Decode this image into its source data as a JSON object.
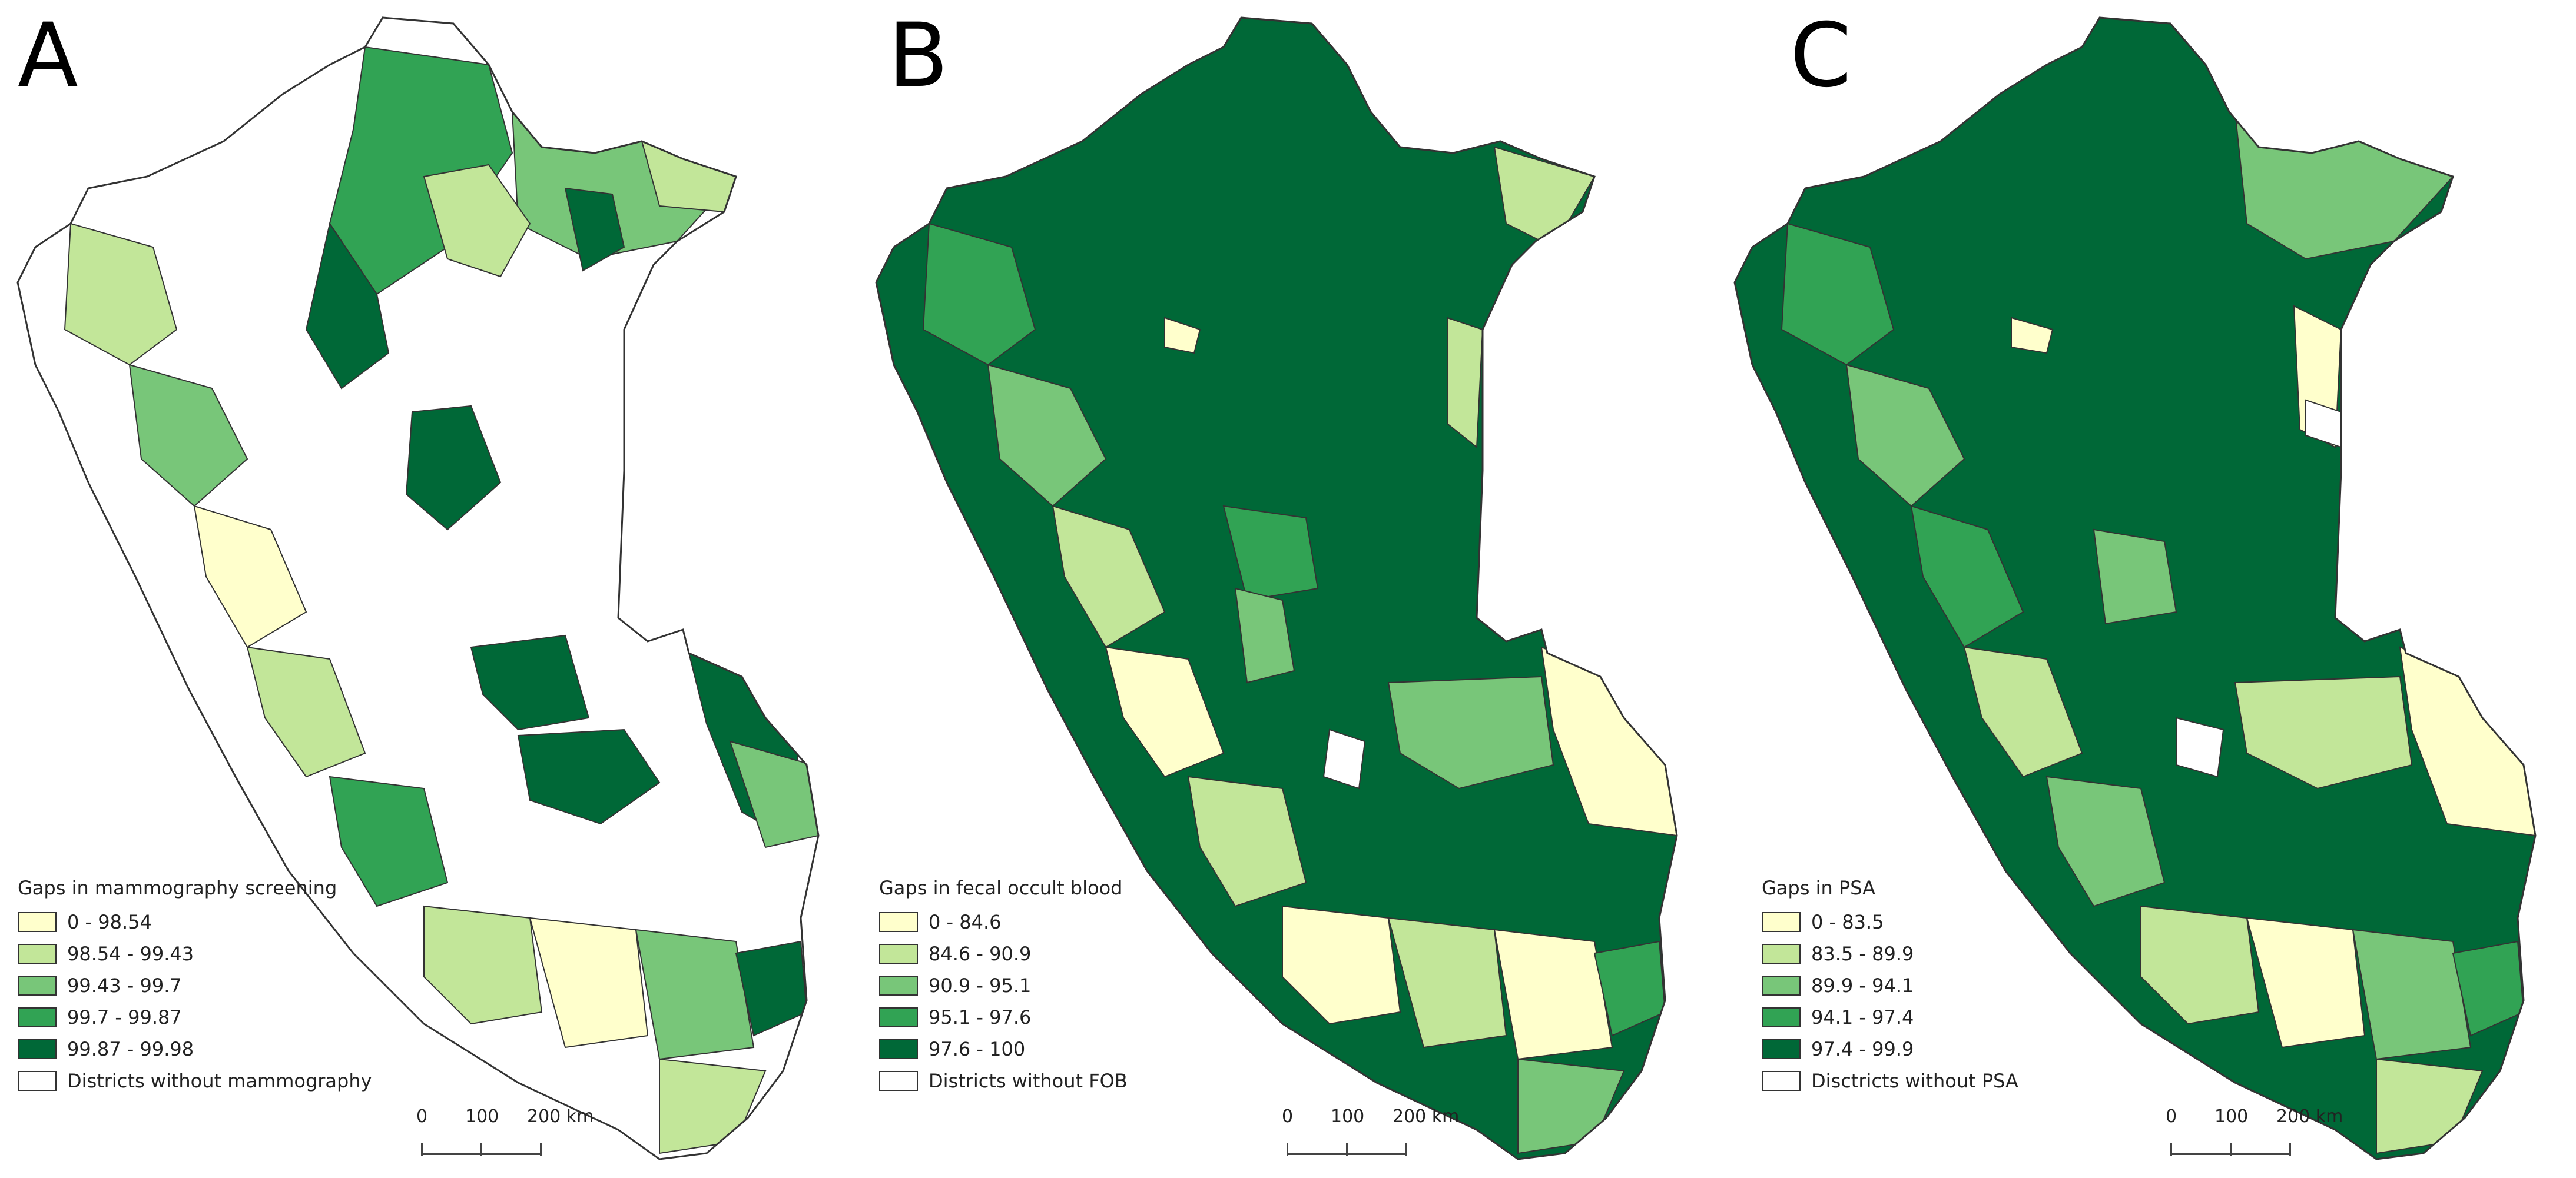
{
  "colors": {
    "class1": "#ffffcc",
    "class2": "#c2e699",
    "class3": "#78c679",
    "class4": "#31a354",
    "class5": "#006837",
    "nodata": "#ffffff",
    "border": "#333333"
  },
  "panels": [
    {
      "letter": "A",
      "legend": {
        "title": "Gaps in mammography screening",
        "items": [
          {
            "label": "0 - 98.54",
            "color": "#ffffcc"
          },
          {
            "label": "98.54 - 99.43",
            "color": "#c2e699"
          },
          {
            "label": "99.43 - 99.7",
            "color": "#78c679"
          },
          {
            "label": "99.7 - 99.87",
            "color": "#31a354"
          },
          {
            "label": "99.87 - 99.98",
            "color": "#006837"
          },
          {
            "label": "Districts without mammography",
            "color": "#ffffff"
          }
        ]
      },
      "scalebar": {
        "ticks": [
          "0",
          "100",
          "200 km"
        ]
      }
    },
    {
      "letter": "B",
      "legend": {
        "title": "Gaps in fecal occult blood",
        "items": [
          {
            "label": "0 - 84.6",
            "color": "#ffffcc"
          },
          {
            "label": "84.6 - 90.9",
            "color": "#c2e699"
          },
          {
            "label": "90.9 - 95.1",
            "color": "#78c679"
          },
          {
            "label": "95.1 - 97.6",
            "color": "#31a354"
          },
          {
            "label": "97.6 - 100",
            "color": "#006837"
          },
          {
            "label": "Districts without FOB",
            "color": "#ffffff"
          }
        ]
      },
      "scalebar": {
        "ticks": [
          "0",
          "100",
          "200 km"
        ]
      }
    },
    {
      "letter": "C",
      "legend": {
        "title": "Gaps in PSA",
        "items": [
          {
            "label": "0 - 83.5",
            "color": "#ffffcc"
          },
          {
            "label": "83.5 - 89.9",
            "color": "#c2e699"
          },
          {
            "label": "89.9 - 94.1",
            "color": "#78c679"
          },
          {
            "label": "94.1 - 97.4",
            "color": "#31a354"
          },
          {
            "label": "97.4 - 99.9",
            "color": "#006837"
          },
          {
            "label": "Disctricts without PSA",
            "color": "#ffffff"
          }
        ]
      },
      "scalebar": {
        "ticks": [
          "0",
          "100",
          "200 km"
        ]
      }
    }
  ]
}
